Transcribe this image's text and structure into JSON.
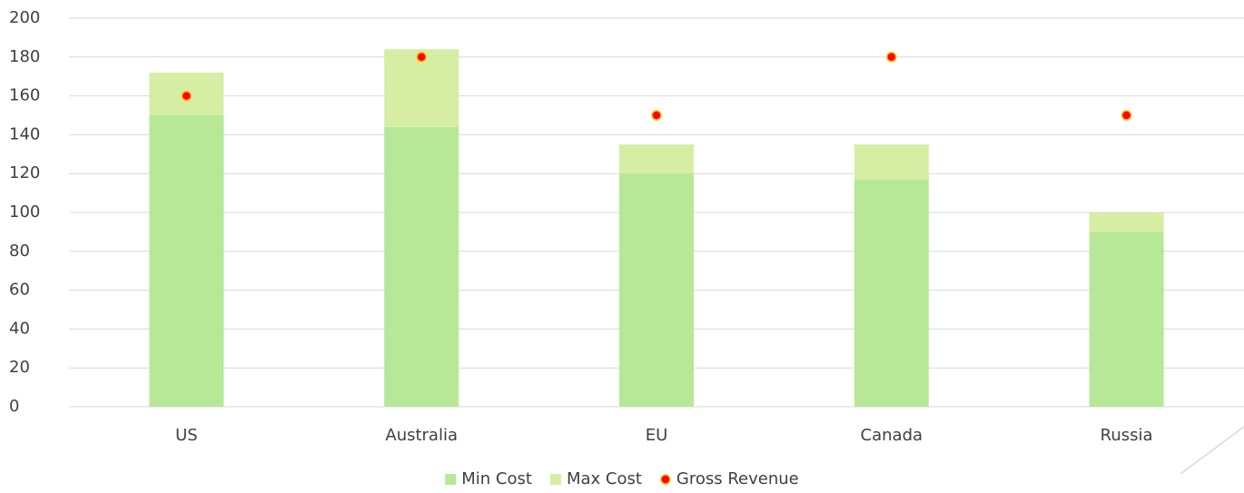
{
  "chart_data": {
    "type": "bar",
    "stacked": true,
    "categories": [
      "US",
      "Australia",
      "EU",
      "Canada",
      "Russia"
    ],
    "series": [
      {
        "name": "Min Cost",
        "color": "#b6e898",
        "values": [
          150,
          144,
          120,
          117,
          90
        ]
      },
      {
        "name": "Max Cost",
        "color": "#d6eda4",
        "values": [
          22,
          40,
          15,
          18,
          10
        ]
      },
      {
        "name": "Gross Revenue",
        "type": "scatter",
        "color": "#ff0000",
        "values": [
          160,
          180,
          150,
          180,
          150
        ]
      }
    ],
    "ylim": [
      0,
      200
    ],
    "yticks": [
      0,
      20,
      40,
      60,
      80,
      100,
      120,
      140,
      160,
      180,
      200
    ],
    "grid": true,
    "legend": "bottom"
  }
}
